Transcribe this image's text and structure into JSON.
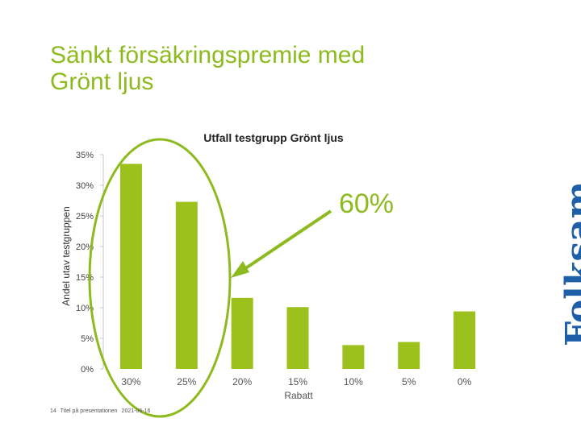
{
  "slide": {
    "title_line1": "Sänkt försäkringspremie med",
    "title_line2": "Grönt ljus"
  },
  "chart_data": {
    "type": "bar",
    "title": "Utfall testgrupp Grönt ljus",
    "xlabel": "Rabatt",
    "ylabel": "Andel utav testgruppen",
    "categories": [
      "30%",
      "25%",
      "20%",
      "15%",
      "10%",
      "5%",
      "0%"
    ],
    "values": [
      33.5,
      27.3,
      11.6,
      10.1,
      3.9,
      4.4,
      9.4
    ],
    "ylim": [
      0,
      35
    ],
    "yticks": [
      "0%",
      "5%",
      "10%",
      "15%",
      "20%",
      "25%",
      "30%",
      "35%"
    ],
    "grid": false,
    "bar_color": "#9cc11c",
    "annotation": {
      "text": "60%",
      "color": "#8dba1f",
      "highlighted_categories": [
        "30%",
        "25%"
      ]
    }
  },
  "footer": {
    "page_number": "14",
    "text": "Titel på presentationen",
    "date": "2021-06-16"
  },
  "logo": {
    "text": "Folksam",
    "color": "#1e5fa8"
  }
}
